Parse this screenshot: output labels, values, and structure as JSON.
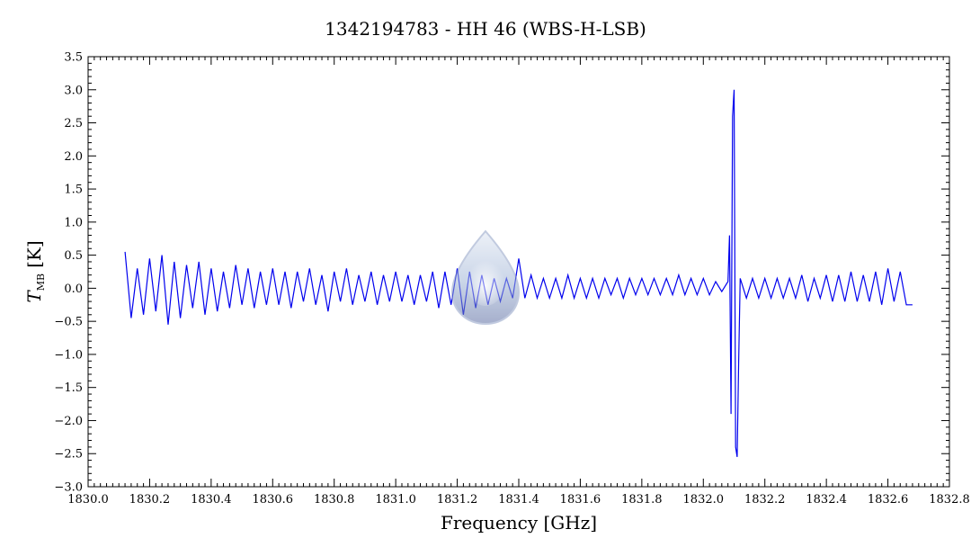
{
  "chart_data": {
    "type": "line",
    "title": "1342194783 - HH 46 (WBS-H-LSB)",
    "xlabel": "Frequency [GHz]",
    "ylabel_main": "T",
    "ylabel_sub": "MB",
    "ylabel_unit": "[K]",
    "xlim": [
      1830.0,
      1832.8
    ],
    "ylim": [
      -3.0,
      3.5
    ],
    "x_ticks": [
      1830.0,
      1830.2,
      1830.4,
      1830.6,
      1830.8,
      1831.0,
      1831.2,
      1831.4,
      1831.6,
      1831.8,
      1832.0,
      1832.2,
      1832.4,
      1832.6,
      1832.8
    ],
    "x_tick_labels": [
      "1830.0",
      "1830.2",
      "1830.4",
      "1830.6",
      "1830.8",
      "1831.0",
      "1831.2",
      "1831.4",
      "1831.6",
      "1831.8",
      "1832.0",
      "1832.2",
      "1832.4",
      "1832.6",
      "1832.8"
    ],
    "y_ticks": [
      -3.0,
      -2.5,
      -2.0,
      -1.5,
      -1.0,
      -0.5,
      0.0,
      0.5,
      1.0,
      1.5,
      2.0,
      2.5,
      3.0,
      3.5
    ],
    "y_tick_labels": [
      "−3.0",
      "−2.5",
      "−2.0",
      "−1.5",
      "−1.0",
      "−0.5",
      "0.0",
      "0.5",
      "1.0",
      "1.5",
      "2.0",
      "2.5",
      "3.0",
      "3.5"
    ],
    "grid": false,
    "series_color": "#0000ee",
    "series": [
      {
        "x": [
          1830.12,
          1830.14,
          1830.16,
          1830.18,
          1830.2,
          1830.22,
          1830.24,
          1830.26,
          1830.28,
          1830.3,
          1830.32,
          1830.34,
          1830.36,
          1830.38,
          1830.4,
          1830.42,
          1830.44,
          1830.46,
          1830.48,
          1830.5,
          1830.52,
          1830.54,
          1830.56,
          1830.58,
          1830.6,
          1830.62,
          1830.64,
          1830.66,
          1830.68,
          1830.7,
          1830.72,
          1830.74,
          1830.76,
          1830.78,
          1830.8,
          1830.82,
          1830.84,
          1830.86,
          1830.88,
          1830.9,
          1830.92,
          1830.94,
          1830.96,
          1830.98,
          1831.0,
          1831.02,
          1831.04,
          1831.06,
          1831.08,
          1831.1,
          1831.12,
          1831.14,
          1831.16,
          1831.18,
          1831.2,
          1831.22,
          1831.24,
          1831.26,
          1831.28,
          1831.3,
          1831.32,
          1831.34,
          1831.36,
          1831.38,
          1831.4,
          1831.42,
          1831.44,
          1831.46,
          1831.48,
          1831.5,
          1831.52,
          1831.54,
          1831.56,
          1831.58,
          1831.6,
          1831.62,
          1831.64,
          1831.66,
          1831.68,
          1831.7,
          1831.72,
          1831.74,
          1831.76,
          1831.78,
          1831.8,
          1831.82,
          1831.84,
          1831.86,
          1831.88,
          1831.9,
          1831.92,
          1831.94,
          1831.96,
          1831.98,
          1832.0,
          1832.02,
          1832.04,
          1832.06,
          1832.08,
          1832.085,
          1832.09,
          1832.095,
          1832.1,
          1832.105,
          1832.11,
          1832.115,
          1832.12,
          1832.14,
          1832.16,
          1832.18,
          1832.2,
          1832.22,
          1832.24,
          1832.26,
          1832.28,
          1832.3,
          1832.32,
          1832.34,
          1832.36,
          1832.38,
          1832.4,
          1832.42,
          1832.44,
          1832.46,
          1832.48,
          1832.5,
          1832.52,
          1832.54,
          1832.56,
          1832.58,
          1832.6,
          1832.62,
          1832.64,
          1832.66,
          1832.68
        ],
        "y": [
          0.55,
          -0.45,
          0.3,
          -0.4,
          0.45,
          -0.35,
          0.5,
          -0.55,
          0.4,
          -0.45,
          0.35,
          -0.3,
          0.4,
          -0.4,
          0.3,
          -0.35,
          0.25,
          -0.3,
          0.35,
          -0.25,
          0.3,
          -0.3,
          0.25,
          -0.25,
          0.3,
          -0.25,
          0.25,
          -0.3,
          0.25,
          -0.2,
          0.3,
          -0.25,
          0.2,
          -0.35,
          0.25,
          -0.2,
          0.3,
          -0.25,
          0.2,
          -0.2,
          0.25,
          -0.25,
          0.2,
          -0.2,
          0.25,
          -0.2,
          0.2,
          -0.25,
          0.2,
          -0.2,
          0.25,
          -0.3,
          0.25,
          -0.25,
          0.3,
          -0.4,
          0.25,
          -0.3,
          0.2,
          -0.25,
          0.15,
          -0.2,
          0.15,
          -0.15,
          0.45,
          -0.15,
          0.2,
          -0.15,
          0.15,
          -0.15,
          0.15,
          -0.15,
          0.2,
          -0.15,
          0.15,
          -0.15,
          0.15,
          -0.15,
          0.15,
          -0.1,
          0.15,
          -0.15,
          0.15,
          -0.1,
          0.15,
          -0.1,
          0.15,
          -0.1,
          0.15,
          -0.1,
          0.2,
          -0.1,
          0.15,
          -0.1,
          0.15,
          -0.1,
          0.1,
          -0.05,
          0.1,
          0.8,
          -1.9,
          2.6,
          3.0,
          -2.4,
          -2.55,
          -1.1,
          0.15,
          -0.15,
          0.15,
          -0.15,
          0.15,
          -0.15,
          0.15,
          -0.15,
          0.15,
          -0.15,
          0.2,
          -0.2,
          0.15,
          -0.15,
          0.2,
          -0.2,
          0.2,
          -0.2,
          0.25,
          -0.2,
          0.2,
          -0.2,
          0.25,
          -0.25,
          0.3,
          -0.2,
          0.25,
          -0.25,
          -0.25
        ]
      }
    ]
  }
}
